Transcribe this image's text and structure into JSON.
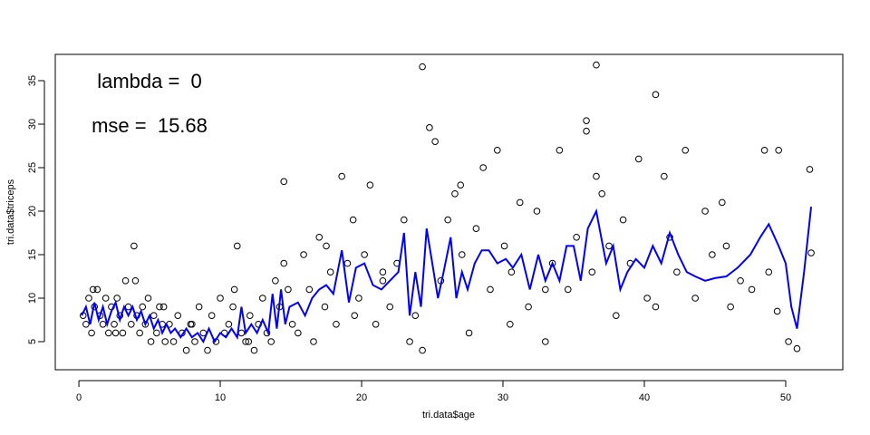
{
  "chart_data": {
    "type": "scatter",
    "x_label": "tri.data$age",
    "y_label": "tri.data$triceps",
    "annotations": [
      "lambda =  0",
      "mse =  15.68"
    ],
    "xlim": [
      -1.67,
      54.04
    ],
    "ylim": [
      1.77,
      38.02
    ],
    "xticks": [
      0,
      10,
      20,
      30,
      40,
      50
    ],
    "yticks": [
      5,
      10,
      15,
      20,
      25,
      30,
      35
    ],
    "point_color": "#000000",
    "x": [
      0.3,
      0.5,
      0.7,
      0.9,
      1.1,
      1.3,
      1.5,
      1.7,
      1.9,
      2.1,
      2.3,
      2.5,
      2.7,
      2.9,
      3.1,
      3.3,
      3.5,
      3.7,
      3.9,
      4.1,
      4.3,
      4.5,
      4.7,
      4.9,
      5.1,
      5.3,
      5.5,
      5.7,
      5.9,
      6.1,
      6.4,
      6.7,
      7.0,
      7.3,
      7.6,
      7.9,
      8.2,
      8.5,
      8.8,
      9.1,
      9.4,
      9.7,
      10.0,
      10.3,
      10.6,
      10.9,
      11.2,
      11.5,
      11.8,
      12.1,
      12.4,
      12.7,
      13.0,
      13.3,
      13.6,
      13.9,
      14.2,
      14.5,
      14.8,
      15.1,
      15.5,
      15.9,
      16.3,
      16.6,
      17.0,
      17.4,
      17.8,
      18.2,
      18.6,
      19.0,
      19.4,
      19.8,
      20.2,
      20.6,
      21.0,
      21.5,
      22.0,
      22.5,
      23.0,
      23.4,
      23.8,
      24.3,
      24.8,
      25.2,
      25.6,
      26.1,
      26.6,
      27.1,
      27.6,
      28.1,
      28.6,
      29.1,
      29.6,
      30.1,
      30.6,
      31.2,
      31.8,
      32.4,
      33.0,
      33.5,
      34.0,
      34.6,
      35.2,
      35.9,
      35.9,
      36.3,
      36.6,
      37.0,
      37.5,
      38.0,
      38.5,
      39.0,
      39.6,
      40.2,
      40.8,
      41.4,
      41.8,
      42.3,
      42.9,
      43.6,
      44.3,
      44.8,
      45.5,
      46.1,
      46.8,
      47.6,
      48.5,
      48.8,
      49.5,
      50.2,
      50.8,
      51.7,
      1.0,
      2.6,
      4.0,
      6.0,
      8.0,
      11.0,
      12.0,
      14.5,
      17.5,
      19.5,
      21.5,
      24.3,
      27.0,
      30.5,
      33.0,
      36.6,
      40.8,
      45.8,
      49.4,
      51.8
    ],
    "values": [
      8,
      7,
      10,
      6,
      9,
      11,
      8,
      7,
      10,
      6,
      9,
      7,
      10,
      8,
      6,
      12,
      9,
      7,
      16,
      8,
      6,
      9,
      7,
      10,
      5,
      8,
      6,
      9,
      7,
      5,
      7,
      5,
      8,
      6,
      4,
      7,
      5,
      9,
      6,
      4,
      8,
      5,
      10,
      6,
      7,
      9,
      16,
      6,
      5,
      8,
      4,
      7,
      10,
      6,
      5,
      12,
      9,
      14,
      11,
      7,
      6,
      15,
      11,
      5,
      17,
      9,
      13,
      7,
      24,
      14,
      19,
      10,
      15,
      23,
      7,
      12,
      9,
      14,
      19,
      5,
      8,
      36.6,
      29.6,
      28,
      12,
      19,
      22,
      15,
      6,
      18,
      25,
      11,
      27,
      16,
      13,
      21,
      9,
      20,
      5,
      14,
      27,
      11,
      17,
      30.4,
      29.2,
      13,
      36.8,
      22,
      16,
      8,
      19,
      14,
      26,
      10,
      33.4,
      24,
      17,
      13,
      27,
      10,
      20,
      15,
      21,
      9,
      12,
      11,
      27,
      13,
      27,
      5,
      4.2,
      24.8,
      11,
      6,
      12,
      9,
      7,
      11,
      5,
      23.4,
      16,
      8,
      13,
      4,
      23,
      7,
      11,
      24,
      9,
      16,
      8.5,
      15.2
    ],
    "fit": {
      "color": "#0000ff",
      "x": [
        0.2,
        0.5,
        0.8,
        1.1,
        1.4,
        1.7,
        2.0,
        2.3,
        2.6,
        2.9,
        3.2,
        3.5,
        3.8,
        4.1,
        4.4,
        4.7,
        5.0,
        5.3,
        5.6,
        5.9,
        6.2,
        6.5,
        6.8,
        7.2,
        7.6,
        8.0,
        8.4,
        8.8,
        9.2,
        9.6,
        10.0,
        10.4,
        10.8,
        11.2,
        11.5,
        11.8,
        12.2,
        12.6,
        13.0,
        13.4,
        13.7,
        14.0,
        14.3,
        14.6,
        14.9,
        15.5,
        16.0,
        16.5,
        17.0,
        17.5,
        18.0,
        18.6,
        19.1,
        19.6,
        20.2,
        20.8,
        21.4,
        22.0,
        22.6,
        23.0,
        23.4,
        23.8,
        24.2,
        24.6,
        25.0,
        25.4,
        25.8,
        26.3,
        26.7,
        27.1,
        27.5,
        28.0,
        28.5,
        29.0,
        29.6,
        30.2,
        30.7,
        31.3,
        31.9,
        32.5,
        33.0,
        33.5,
        34.0,
        34.5,
        35.0,
        35.5,
        36.0,
        36.6,
        37.3,
        37.8,
        38.3,
        38.8,
        39.4,
        40.0,
        40.6,
        41.2,
        41.8,
        42.4,
        43.0,
        43.6,
        44.3,
        45.0,
        45.8,
        46.6,
        47.5,
        48.2,
        48.8,
        49.5,
        50.0,
        50.4,
        50.8,
        51.3,
        51.8
      ],
      "values": [
        8,
        9,
        7,
        9.5,
        7.5,
        9,
        7,
        8.5,
        9.5,
        7.5,
        9,
        8,
        9,
        7.5,
        8.5,
        7,
        8,
        6.5,
        7.5,
        6,
        7,
        6,
        6.5,
        5.5,
        6.5,
        5.5,
        6,
        5,
        6.5,
        5,
        6,
        5.5,
        6.5,
        5.5,
        9,
        6,
        7,
        6,
        7.5,
        6,
        10.5,
        6.5,
        11,
        7,
        9,
        9.5,
        8,
        10,
        11,
        11.5,
        10.5,
        15.5,
        9.5,
        13.5,
        14,
        11.5,
        11,
        12,
        13,
        17.5,
        8,
        13,
        9,
        18,
        14,
        10,
        13,
        17,
        10,
        13,
        11,
        14,
        15.5,
        15.5,
        14,
        14.5,
        13.5,
        15,
        11,
        15,
        12,
        14,
        12,
        16,
        16,
        12,
        18,
        20,
        14,
        16,
        11,
        13,
        14.5,
        13.5,
        16,
        14,
        17.5,
        15,
        13,
        12.5,
        12,
        12.3,
        12.5,
        13.5,
        15,
        17,
        18.5,
        16,
        14,
        9,
        6.5,
        13,
        20.5
      ]
    }
  }
}
